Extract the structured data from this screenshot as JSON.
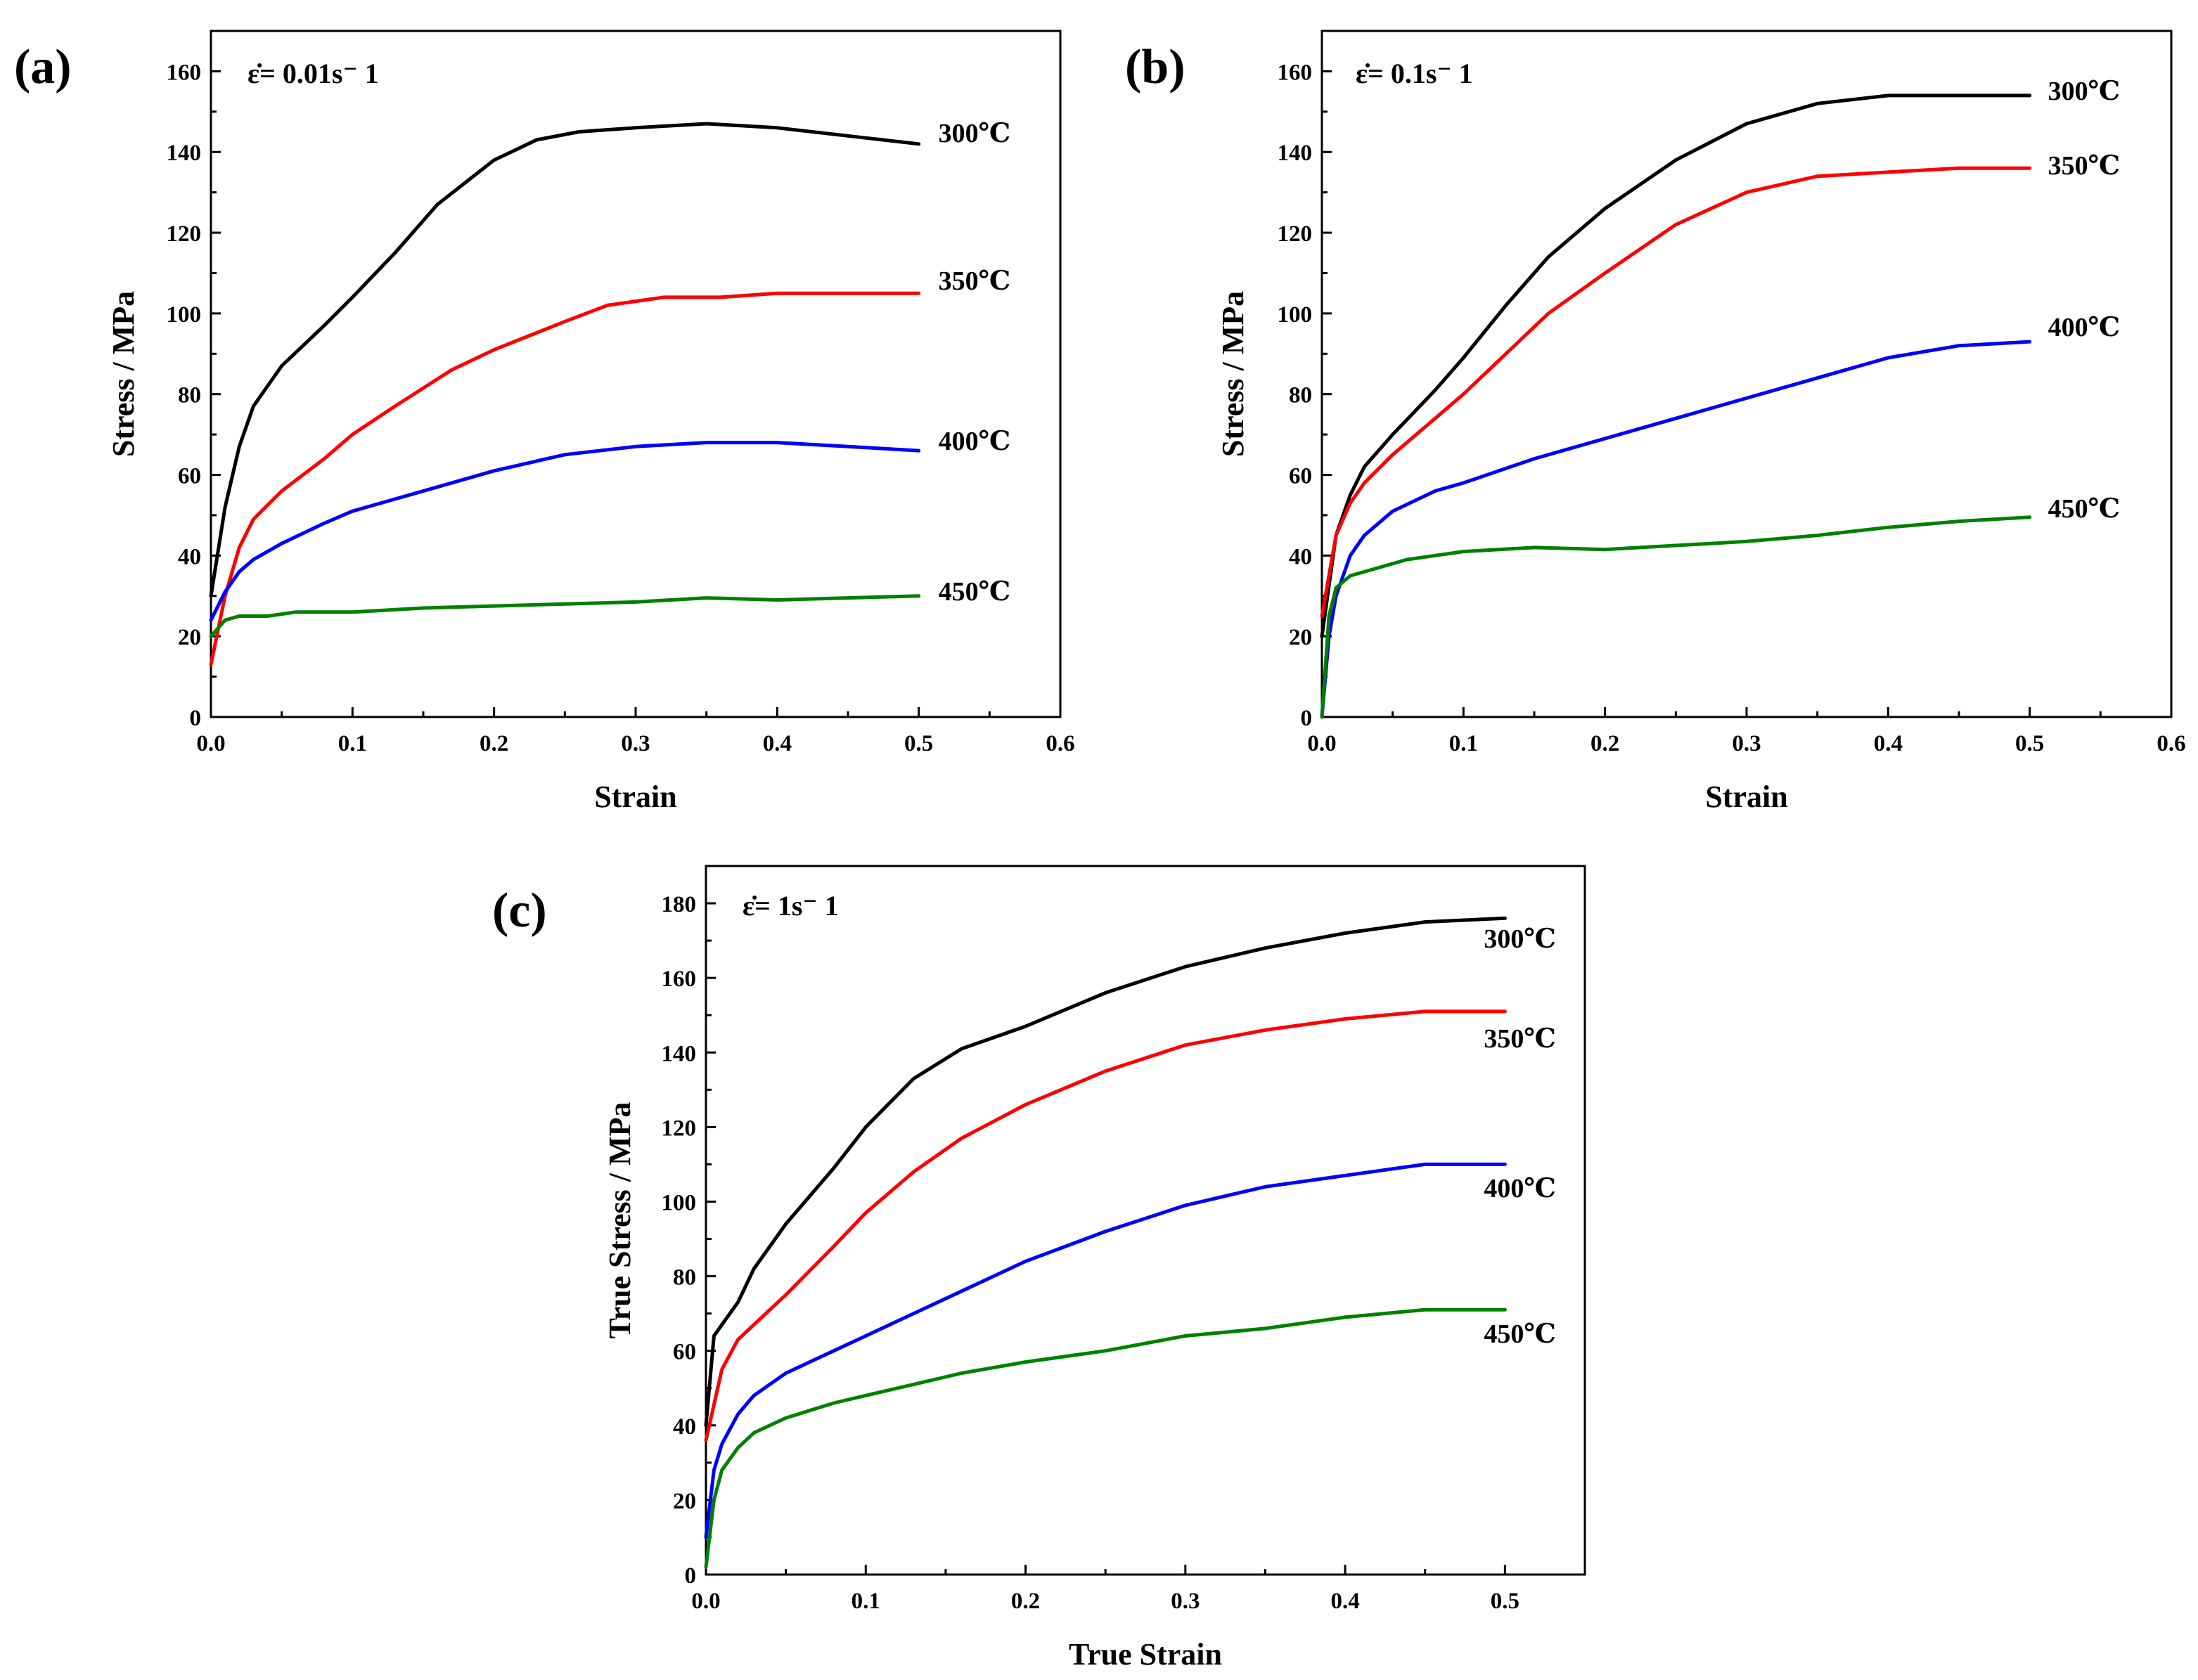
{
  "chart_data": [
    {
      "type": "line",
      "panel_label": "(a)",
      "rate_label": "ε̇= 0.01s⁻ 1",
      "xlabel": "Strain",
      "ylabel": "Stress / MPa",
      "xlim": [
        0,
        0.6
      ],
      "ylim": [
        0,
        170
      ],
      "xticks": [
        "0.0",
        "0.1",
        "0.2",
        "0.3",
        "0.4",
        "0.5",
        "0.6"
      ],
      "yticks": [
        "0",
        "20",
        "40",
        "60",
        "80",
        "100",
        "120",
        "140",
        "160"
      ],
      "series": [
        {
          "name": "300℃",
          "color": "#000000",
          "x": [
            0,
            0.01,
            0.02,
            0.03,
            0.05,
            0.08,
            0.1,
            0.13,
            0.16,
            0.2,
            0.23,
            0.26,
            0.3,
            0.35,
            0.4,
            0.45,
            0.5
          ],
          "y": [
            30,
            52,
            67,
            77,
            87,
            97,
            104,
            115,
            127,
            138,
            143,
            145,
            146,
            147,
            146,
            144,
            142
          ]
        },
        {
          "name": "350℃",
          "color": "#ff0000",
          "x": [
            0,
            0.01,
            0.02,
            0.03,
            0.05,
            0.08,
            0.1,
            0.13,
            0.17,
            0.2,
            0.25,
            0.28,
            0.32,
            0.36,
            0.4,
            0.45,
            0.5
          ],
          "y": [
            13,
            30,
            42,
            49,
            56,
            64,
            70,
            77,
            86,
            91,
            98,
            102,
            104,
            104,
            105,
            105,
            105
          ]
        },
        {
          "name": "400℃",
          "color": "#0000ff",
          "x": [
            0,
            0.01,
            0.02,
            0.03,
            0.05,
            0.08,
            0.1,
            0.13,
            0.16,
            0.2,
            0.25,
            0.3,
            0.35,
            0.4,
            0.45,
            0.5
          ],
          "y": [
            24,
            31,
            36,
            39,
            43,
            48,
            51,
            54,
            57,
            61,
            65,
            67,
            68,
            68,
            67,
            66
          ]
        },
        {
          "name": "450℃",
          "color": "#008000",
          "x": [
            0,
            0.01,
            0.02,
            0.04,
            0.06,
            0.1,
            0.15,
            0.2,
            0.25,
            0.3,
            0.35,
            0.4,
            0.45,
            0.5
          ],
          "y": [
            20,
            24,
            25,
            25,
            26,
            26,
            27,
            27.5,
            28,
            28.5,
            29.5,
            29,
            29.5,
            30
          ]
        }
      ]
    },
    {
      "type": "line",
      "panel_label": "(b)",
      "rate_label": "ε̇= 0.1s⁻ 1",
      "xlabel": "Strain",
      "ylabel": "Stress / MPa",
      "xlim": [
        0,
        0.6
      ],
      "ylim": [
        0,
        170
      ],
      "xticks": [
        "0.0",
        "0.1",
        "0.2",
        "0.3",
        "0.4",
        "0.5",
        "0.6"
      ],
      "yticks": [
        "0",
        "20",
        "40",
        "60",
        "80",
        "100",
        "120",
        "140",
        "160"
      ],
      "series": [
        {
          "name": "300℃",
          "color": "#000000",
          "x": [
            0,
            0.01,
            0.02,
            0.03,
            0.05,
            0.08,
            0.1,
            0.13,
            0.16,
            0.2,
            0.25,
            0.3,
            0.35,
            0.4,
            0.45,
            0.5
          ],
          "y": [
            20,
            45,
            55,
            62,
            70,
            81,
            89,
            102,
            114,
            126,
            138,
            147,
            152,
            154,
            154,
            154
          ]
        },
        {
          "name": "350℃",
          "color": "#ff0000",
          "x": [
            0,
            0.01,
            0.02,
            0.03,
            0.05,
            0.08,
            0.1,
            0.13,
            0.16,
            0.2,
            0.25,
            0.3,
            0.35,
            0.4,
            0.45,
            0.5
          ],
          "y": [
            25,
            45,
            53,
            58,
            65,
            74,
            80,
            90,
            100,
            110,
            122,
            130,
            134,
            135,
            136,
            136
          ]
        },
        {
          "name": "400℃",
          "color": "#0000ff",
          "x": [
            0,
            0.005,
            0.01,
            0.02,
            0.03,
            0.05,
            0.08,
            0.1,
            0.15,
            0.2,
            0.25,
            0.3,
            0.35,
            0.4,
            0.45,
            0.5
          ],
          "y": [
            0,
            20,
            30,
            40,
            45,
            51,
            56,
            58,
            64,
            69,
            74,
            79,
            84,
            89,
            92,
            93
          ]
        },
        {
          "name": "450℃",
          "color": "#008000",
          "x": [
            0,
            0.005,
            0.01,
            0.02,
            0.04,
            0.06,
            0.1,
            0.15,
            0.2,
            0.25,
            0.3,
            0.35,
            0.4,
            0.45,
            0.5
          ],
          "y": [
            0,
            25,
            32,
            35,
            37,
            39,
            41,
            42,
            41.5,
            42.5,
            43.5,
            45,
            47,
            48.5,
            49.5
          ]
        }
      ]
    },
    {
      "type": "line",
      "panel_label": "(c)",
      "rate_label": "ε̇= 1s⁻ 1",
      "xlabel": "True Strain",
      "ylabel": "True Stress / MPa",
      "xlim": [
        0,
        0.55
      ],
      "ylim": [
        0,
        190
      ],
      "xticks": [
        "0.0",
        "0.1",
        "0.2",
        "0.3",
        "0.4",
        "0.5"
      ],
      "yticks": [
        "0",
        "20",
        "40",
        "60",
        "80",
        "100",
        "120",
        "140",
        "160",
        "180"
      ],
      "series": [
        {
          "name": "300℃",
          "color": "#000000",
          "x": [
            0,
            0.005,
            0.01,
            0.02,
            0.03,
            0.05,
            0.08,
            0.1,
            0.13,
            0.16,
            0.2,
            0.25,
            0.3,
            0.35,
            0.4,
            0.45,
            0.5
          ],
          "y": [
            40,
            64,
            67,
            73,
            82,
            94,
            109,
            120,
            133,
            141,
            147,
            156,
            163,
            168,
            172,
            175,
            176
          ]
        },
        {
          "name": "350℃",
          "color": "#ff0000",
          "x": [
            0,
            0.01,
            0.02,
            0.03,
            0.05,
            0.08,
            0.1,
            0.13,
            0.16,
            0.2,
            0.25,
            0.3,
            0.35,
            0.4,
            0.45,
            0.5
          ],
          "y": [
            36,
            55,
            63,
            67,
            75,
            88,
            97,
            108,
            117,
            126,
            135,
            142,
            146,
            149,
            151,
            151
          ]
        },
        {
          "name": "400℃",
          "color": "#0000ff",
          "x": [
            0,
            0.005,
            0.01,
            0.02,
            0.03,
            0.05,
            0.08,
            0.1,
            0.13,
            0.16,
            0.2,
            0.25,
            0.3,
            0.35,
            0.4,
            0.45,
            0.5
          ],
          "y": [
            10,
            28,
            35,
            43,
            48,
            54,
            60,
            64,
            70,
            76,
            84,
            92,
            99,
            104,
            107,
            110,
            110
          ]
        },
        {
          "name": "450℃",
          "color": "#008000",
          "x": [
            0,
            0.005,
            0.01,
            0.02,
            0.03,
            0.05,
            0.08,
            0.1,
            0.13,
            0.16,
            0.2,
            0.25,
            0.3,
            0.35,
            0.4,
            0.45,
            0.5
          ],
          "y": [
            2,
            20,
            28,
            34,
            38,
            42,
            46,
            48,
            51,
            54,
            57,
            60,
            64,
            66,
            69,
            71,
            71
          ]
        }
      ]
    }
  ]
}
